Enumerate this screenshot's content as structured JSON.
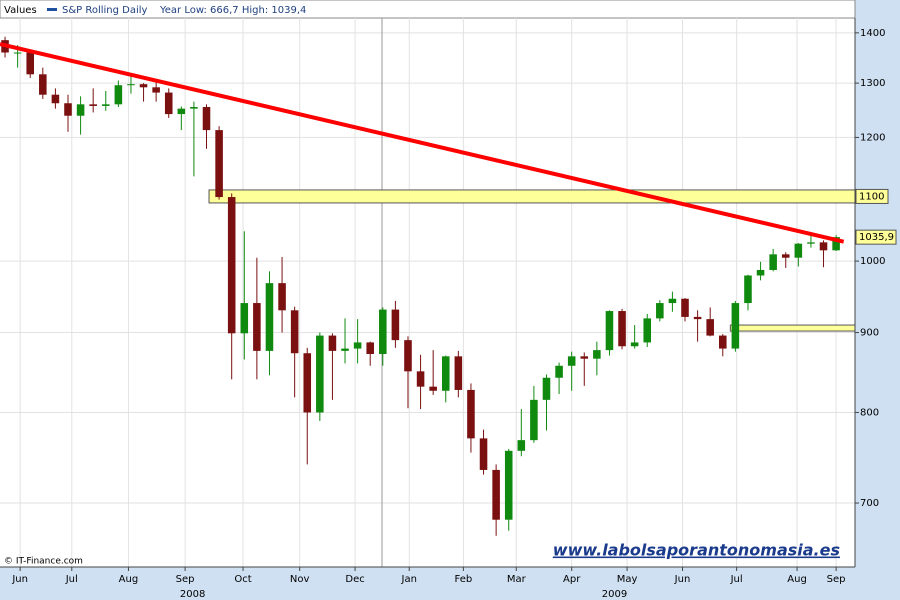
{
  "header": {
    "label": "Values",
    "series_name": "S&P Rolling Daily",
    "range_text": "Year Low: 666,7 High: 1039,4"
  },
  "chart_data": {
    "type": "candlestick",
    "log_scale": true,
    "grid": true,
    "up_color": "#0f8a0f",
    "down_color": "#7a1010",
    "open": [
      1385,
      1360,
      1360,
      1317,
      1278,
      1262,
      1239,
      1260,
      1257,
      1260,
      1296,
      1298,
      1292,
      1282,
      1242,
      1252,
      1255,
      1213,
      1099,
      899,
      940,
      876,
      968,
      930,
      873,
      800,
      896,
      876,
      879,
      887,
      872,
      931,
      890,
      850,
      831,
      826,
      869,
      827,
      770,
      735,
      683,
      756,
      768,
      815,
      842,
      857,
      869,
      866,
      877,
      929,
      882,
      887,
      919,
      940,
      946,
      921,
      918,
      896,
      879,
      940,
      979,
      987,
      1010,
      1005,
      1026,
      1028,
      1016
    ],
    "high": [
      1392,
      1375,
      1365,
      1330,
      1290,
      1278,
      1275,
      1290,
      1285,
      1305,
      1313,
      1300,
      1303,
      1290,
      1256,
      1265,
      1260,
      1220,
      1105,
      1045,
      1005,
      985,
      1006,
      935,
      880,
      900,
      899,
      919,
      918,
      888,
      934,
      943,
      895,
      871,
      877,
      870,
      876,
      835,
      780,
      741,
      758,
      804,
      832,
      846,
      861,
      875,
      874,
      888,
      930,
      932,
      910,
      925,
      944,
      956,
      947,
      930,
      934,
      898,
      943,
      980,
      999,
      1018,
      1013,
      1027,
      1040,
      1031,
      1039
    ],
    "low": [
      1350,
      1330,
      1310,
      1270,
      1252,
      1210,
      1205,
      1245,
      1248,
      1255,
      1280,
      1265,
      1265,
      1235,
      1213,
      1133,
      1180,
      1095,
      840,
      865,
      840,
      845,
      900,
      818,
      741,
      790,
      815,
      860,
      860,
      857,
      857,
      880,
      805,
      804,
      821,
      812,
      818,
      754,
      730,
      667,
      672,
      750,
      765,
      779,
      822,
      826,
      832,
      845,
      870,
      878,
      879,
      881,
      915,
      928,
      915,
      888,
      895,
      869,
      875,
      930,
      972,
      985,
      990,
      992,
      1020,
      991,
      1015
    ],
    "close": [
      1360,
      1360,
      1317,
      1278,
      1262,
      1239,
      1260,
      1257,
      1260,
      1296,
      1298,
      1292,
      1282,
      1242,
      1252,
      1255,
      1213,
      1099,
      899,
      940,
      876,
      968,
      930,
      873,
      800,
      896,
      876,
      879,
      887,
      872,
      931,
      890,
      850,
      831,
      826,
      869,
      827,
      770,
      735,
      683,
      756,
      768,
      815,
      842,
      857,
      869,
      866,
      877,
      929,
      882,
      887,
      919,
      940,
      946,
      921,
      918,
      896,
      879,
      940,
      979,
      987,
      1010,
      1005,
      1026,
      1028,
      1016,
      1036
    ],
    "xlim": [
      -0.4,
      67.5
    ],
    "ylim": [
      637,
      1431
    ],
    "yticks": [
      700,
      800,
      900,
      1000,
      1200,
      1300,
      1400
    ],
    "xticks": [
      {
        "value": 1.2,
        "label": "Jun"
      },
      {
        "value": 5.3,
        "label": "Jul"
      },
      {
        "value": 9.8,
        "label": "Aug"
      },
      {
        "value": 14.3,
        "label": "Sep"
      },
      {
        "value": 18.9,
        "label": "Oct"
      },
      {
        "value": 23.4,
        "label": "Nov"
      },
      {
        "value": 27.8,
        "label": "Dec"
      },
      {
        "value": 32.1,
        "label": "Jan"
      },
      {
        "value": 36.4,
        "label": "Feb"
      },
      {
        "value": 40.6,
        "label": "Mar"
      },
      {
        "value": 45,
        "label": "Apr"
      },
      {
        "value": 49.4,
        "label": "May"
      },
      {
        "value": 53.8,
        "label": "Jun"
      },
      {
        "value": 58.1,
        "label": "Jul"
      },
      {
        "value": 62.9,
        "label": "Aug"
      },
      {
        "value": 66,
        "label": "Sep"
      }
    ],
    "year_ticks": [
      {
        "value": 14.9,
        "label": "2008"
      },
      {
        "value": 48.4,
        "label": "2009"
      }
    ],
    "trendline": {
      "x": [
        -0.4,
        66.6
      ],
      "y": [
        1377,
        1029
      ],
      "color": "#ff0000"
    },
    "levels": [
      {
        "value": 1100,
        "label": "1100",
        "from": 16.2,
        "color": "#ffff99"
      },
      {
        "value": 906,
        "from": 57.6,
        "color": "#ffff99"
      }
    ],
    "last_price": {
      "value": 1035.9,
      "label": "1035,9"
    },
    "source": "© IT-Finance.com",
    "watermark": "www.labolsaporantonomasia.es"
  }
}
